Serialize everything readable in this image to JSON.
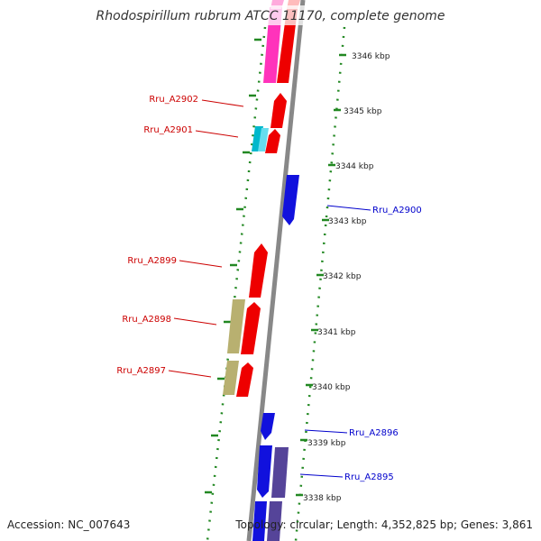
{
  "map": {
    "title": "Rhodospirillum rubrum ATCC 11170, complete genome",
    "accession": "Accession: NC_007643",
    "topology": "Topology: circular; Length: 4,352,825 bp; Genes: 3,861"
  },
  "scale_labels": [
    "3346 kbp",
    "3345 kbp",
    "3344 kbp",
    "3343 kbp",
    "3342 kbp",
    "3341 kbp",
    "3340 kbp",
    "3339 kbp",
    "3338 kbp"
  ],
  "gene_labels": [
    {
      "text": "Rru_A2902",
      "color": "#cc0000"
    },
    {
      "text": "Rru_A2901",
      "color": "#cc0000"
    },
    {
      "text": "Rru_A2900",
      "color": "#0000cc"
    },
    {
      "text": "Rru_A2899",
      "color": "#cc0000"
    },
    {
      "text": "Rru_A2898",
      "color": "#cc0000"
    },
    {
      "text": "Rru_A2897",
      "color": "#cc0000"
    },
    {
      "text": "Rru_A2896",
      "color": "#0000cc"
    },
    {
      "text": "Rru_A2895",
      "color": "#0000cc"
    }
  ],
  "colors": {
    "forward_cds": "#ee0000",
    "reverse_cds": "#1111dd",
    "trna": "#ff33bb",
    "rrna": "#00b8cc",
    "other": "#b8b070",
    "reverse_other": "#554499",
    "backbone": "#888888",
    "ruler": "#228822"
  }
}
